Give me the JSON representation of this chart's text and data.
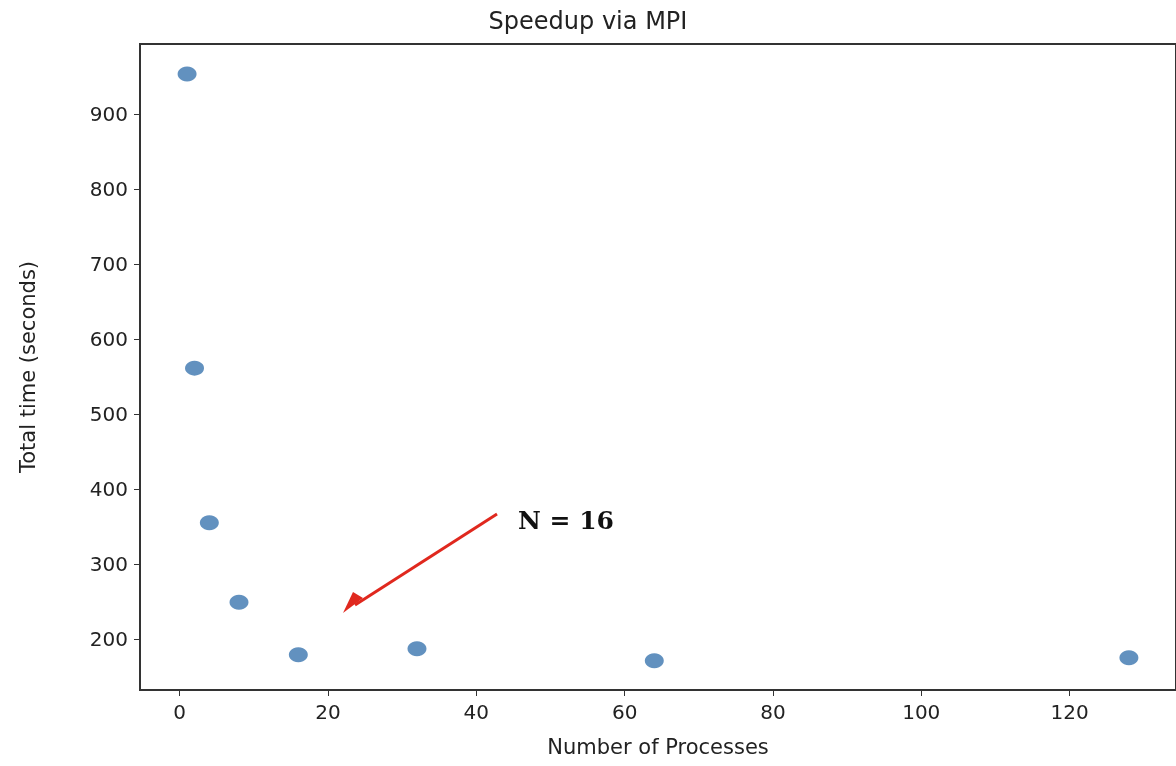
{
  "chart_data": {
    "type": "scatter",
    "title": "Speedup via MPI",
    "xlabel": "Number of Processes",
    "ylabel": "Total time (seconds)",
    "x": [
      1,
      2,
      4,
      8,
      16,
      32,
      64,
      128
    ],
    "values": [
      953,
      561,
      355,
      249,
      179,
      187,
      171,
      175
    ],
    "color": "#3b75af",
    "xlim": [
      -5.35,
      134.35
    ],
    "xticks": [
      0,
      20,
      40,
      60,
      80,
      100,
      120
    ],
    "ylim": [
      132,
      993
    ],
    "yticks": [
      200,
      300,
      400,
      500,
      600,
      700,
      800,
      900
    ],
    "grid": false,
    "marker": "circle",
    "annotations": [
      "N = 16"
    ]
  }
}
